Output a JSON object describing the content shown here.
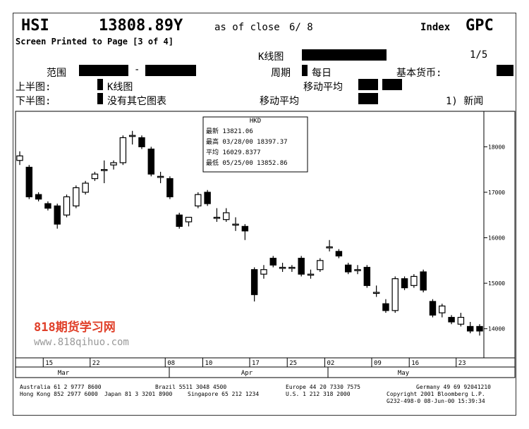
{
  "header": {
    "ticker": "HSI",
    "price": "13808.89Y",
    "as_of": "as of close",
    "date": "6/ 8",
    "kind": "Index",
    "code": "GPC",
    "screen": "Screen Printed to Page [3 of 4]",
    "chart_label": "K线图",
    "page": "1/5",
    "range": "范围",
    "dash": "-",
    "period": "周期",
    "period_value": "每日",
    "currency": "基本货币:",
    "upper": "上半图:",
    "upper_value": "K线图",
    "moving_avg_1": "移动平均",
    "lower": "下半图:",
    "lower_value": "没有其它图表",
    "moving_avg_2": "移动平均",
    "news": "1) 新闻"
  },
  "chart_data": {
    "type": "candlestick",
    "categories": [
      null,
      null,
      null,
      "15",
      null,
      null,
      null,
      null,
      "22",
      null,
      null,
      null,
      null,
      null,
      null,
      null,
      "08",
      null,
      null,
      null,
      "10",
      null,
      null,
      null,
      null,
      "17",
      null,
      null,
      null,
      "25",
      null,
      null,
      null,
      "02",
      null,
      null,
      null,
      null,
      "09",
      null,
      null,
      null,
      "16",
      null,
      null,
      null,
      null,
      "23",
      null,
      null
    ],
    "months": [
      "Mar",
      "Apr",
      "May"
    ],
    "open": [
      17700,
      17550,
      16950,
      16750,
      16700,
      16500,
      16700,
      17000,
      17300,
      17500,
      17600,
      17650,
      18250,
      18200,
      17950,
      17350,
      17300,
      16500,
      16350,
      16700,
      17000,
      16450,
      16400,
      16300,
      16250,
      15300,
      15200,
      15550,
      15350,
      15350,
      15550,
      15200,
      15300,
      15800,
      15700,
      15400,
      15300,
      15350,
      14800,
      14550,
      14400,
      15100,
      14950,
      15250,
      14600,
      14350,
      14250,
      14100,
      14050,
      14050
    ],
    "high": [
      17900,
      17600,
      17000,
      16800,
      16750,
      16950,
      17150,
      17250,
      17450,
      17700,
      17700,
      18250,
      18350,
      18250,
      18000,
      17450,
      17350,
      16550,
      16450,
      17000,
      17050,
      16650,
      16650,
      16450,
      16300,
      15350,
      15400,
      15600,
      15450,
      15400,
      15600,
      15300,
      15550,
      15950,
      15750,
      15450,
      15400,
      15400,
      14950,
      14650,
      15150,
      15150,
      15200,
      15300,
      14650,
      14550,
      14300,
      14350,
      14150,
      14100
    ],
    "low": [
      17600,
      16850,
      16800,
      16600,
      16200,
      16450,
      16650,
      16950,
      17250,
      17200,
      17500,
      17600,
      18050,
      17950,
      17350,
      17200,
      16850,
      16200,
      16250,
      16650,
      16700,
      16350,
      16350,
      16150,
      15950,
      14600,
      15100,
      15350,
      15250,
      15250,
      15150,
      15100,
      15250,
      15700,
      15550,
      15200,
      15200,
      14900,
      14700,
      14350,
      14350,
      14850,
      14900,
      14800,
      14250,
      14250,
      14100,
      14050,
      13900,
      13850
    ],
    "close": [
      17800,
      16900,
      16850,
      16650,
      16300,
      16900,
      17100,
      17200,
      17400,
      17500,
      17650,
      18200,
      18250,
      18000,
      17400,
      17350,
      16900,
      16250,
      16450,
      16950,
      16750,
      16450,
      16550,
      16300,
      16150,
      14750,
      15300,
      15400,
      15350,
      15350,
      15200,
      15200,
      15500,
      15800,
      15600,
      15250,
      15300,
      14950,
      14800,
      14400,
      15100,
      14900,
      15150,
      14850,
      14300,
      14500,
      14150,
      14250,
      13950,
      13950
    ],
    "ylim": [
      13360,
      18780
    ],
    "yticks": [
      14000,
      15000,
      16000,
      17000,
      18000
    ],
    "info_box": {
      "title": "HKD",
      "rows": [
        "最新 13821.06",
        "最高 03/28/00 18397.37",
        "平均 16029.8377",
        "最低 05/25/00 13852.86"
      ]
    }
  },
  "watermark": {
    "name": "818期货学习网",
    "url": "www.818qihuo.com"
  },
  "footer": {
    "line1a": "Australia 61 2 9777 8600",
    "line1b": "Brazil 5511 3048 4500",
    "line1c": "Europe 44 20 7330 7575",
    "line1d": "Germany 49 69 92041210",
    "line2a": "Hong Kong 852 2977 6000",
    "line2b": "Japan 81 3 3201 8900",
    "line2c": "Singapore 65 212 1234",
    "line2d": "U.S. 1 212 318 2000",
    "line2e": "Copyright 2001 Bloomberg L.P.",
    "line3": "G232-498-0 08-Jun-00 15:39:34"
  }
}
